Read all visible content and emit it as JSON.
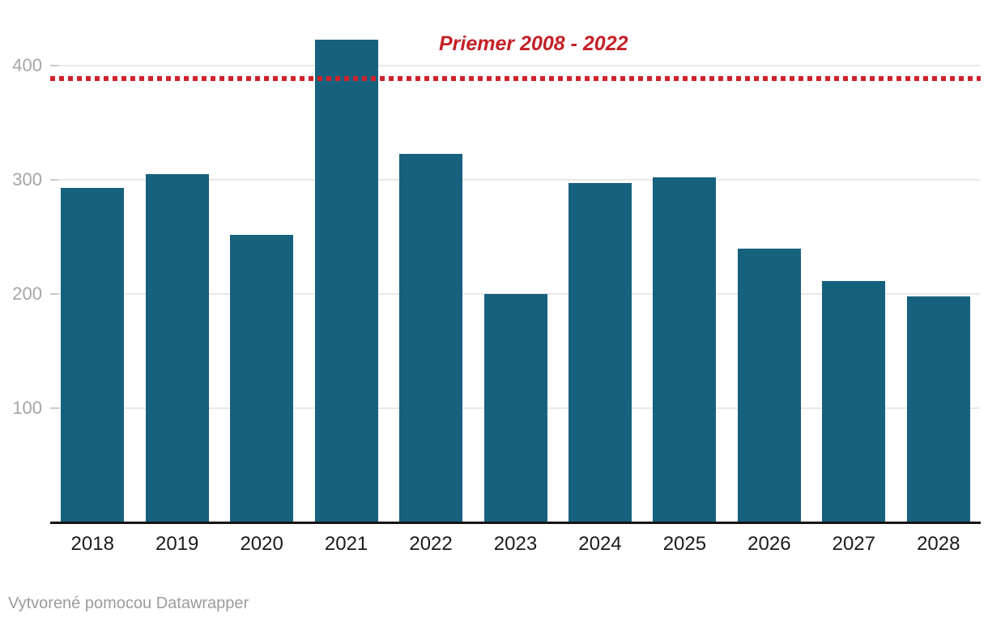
{
  "chart_data": {
    "type": "bar",
    "categories": [
      "2018",
      "2019",
      "2020",
      "2021",
      "2022",
      "2023",
      "2024",
      "2025",
      "2026",
      "2027",
      "2028"
    ],
    "values": [
      293,
      305,
      252,
      423,
      323,
      200,
      297,
      302,
      240,
      211,
      198
    ],
    "title": "",
    "xlabel": "",
    "ylabel": "",
    "yticks": [
      100,
      200,
      300,
      400
    ],
    "ylim": [
      0,
      430
    ],
    "grid": "horizontal",
    "legend": "none",
    "annotation_line": {
      "label": "Priemer 2008 - 2022",
      "value": 389,
      "style": "dotted"
    }
  },
  "colors": {
    "bar": "#16617e",
    "reference_line": "#d0222a",
    "annotation_text": "#c32127",
    "gridline": "#e8e8e8",
    "tick_mark": "#c9c9c9",
    "ytick_label": "#a5a5a5",
    "xtick_label": "#1b1b1b",
    "axis_line": "#151515",
    "footer_text": "#9b9b9b",
    "background": "#ffffff"
  },
  "footer": {
    "attribution": "Vytvorené pomocou Datawrapper"
  }
}
